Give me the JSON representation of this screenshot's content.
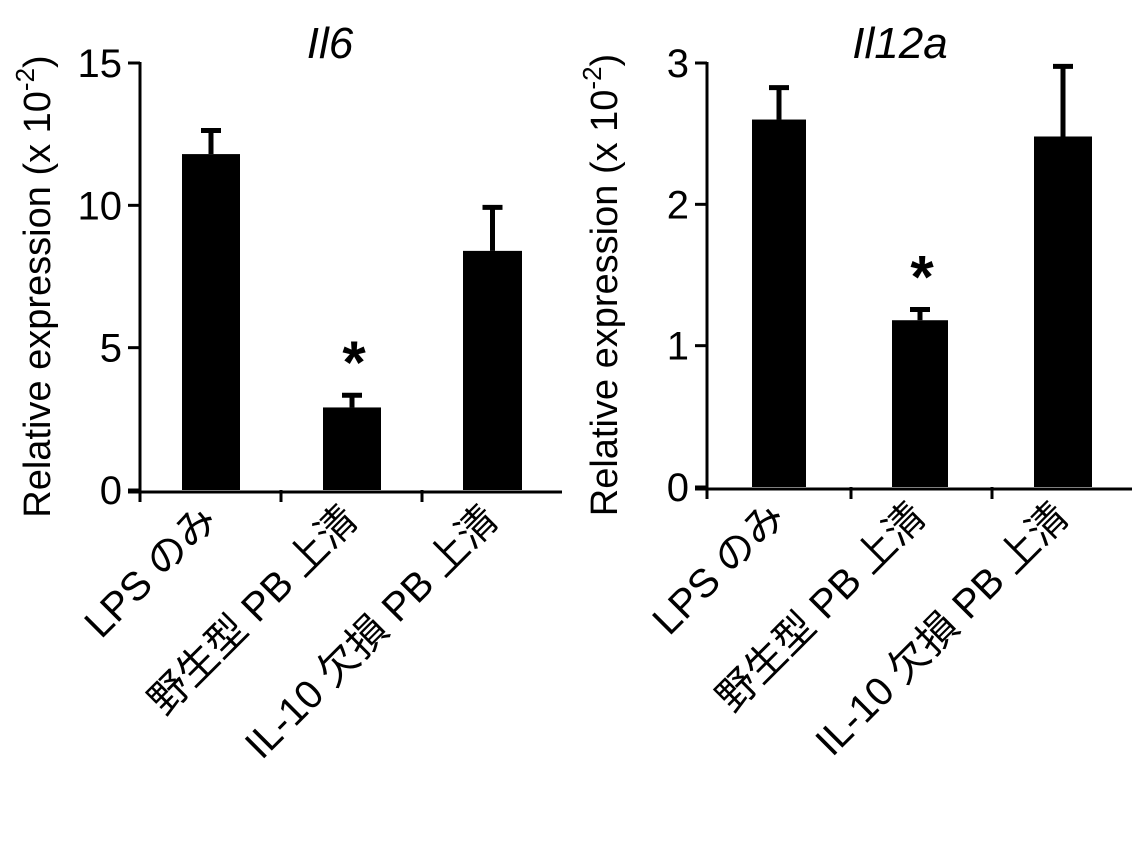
{
  "chart_data": [
    {
      "type": "bar",
      "title": "Il6",
      "ylabel": "Relative expression (x 10",
      "ylabel_exp": "-2",
      "ylabel_close": ")",
      "categories": [
        "LPS のみ",
        "野生型 PB 上清",
        "IL-10 欠損 PB 上清"
      ],
      "values": [
        11.8,
        2.9,
        8.4
      ],
      "error_upper": [
        12.7,
        3.4,
        10.0
      ],
      "annotations": [
        "",
        "*",
        ""
      ],
      "ylim": [
        0,
        15
      ],
      "yticks": [
        "0",
        "5",
        "10",
        "15"
      ],
      "ytick_values": [
        0,
        5,
        10,
        15
      ],
      "bar_color": "#000000",
      "grid": false
    },
    {
      "type": "bar",
      "title": "Il12a",
      "ylabel": "Relative expression (x 10",
      "ylabel_exp": "-2",
      "ylabel_close": ")",
      "categories": [
        "LPS のみ",
        "野生型 PB 上清",
        "IL-10 欠損 PB 上清"
      ],
      "values": [
        2.6,
        1.18,
        2.48
      ],
      "error_upper": [
        2.84,
        1.27,
        2.99
      ],
      "annotations": [
        "",
        "*",
        ""
      ],
      "ylim": [
        0,
        3
      ],
      "yticks": [
        "0",
        "1",
        "2",
        "3"
      ],
      "ytick_values": [
        0,
        1,
        2,
        3
      ],
      "bar_color": "#000000",
      "grid": false
    }
  ]
}
